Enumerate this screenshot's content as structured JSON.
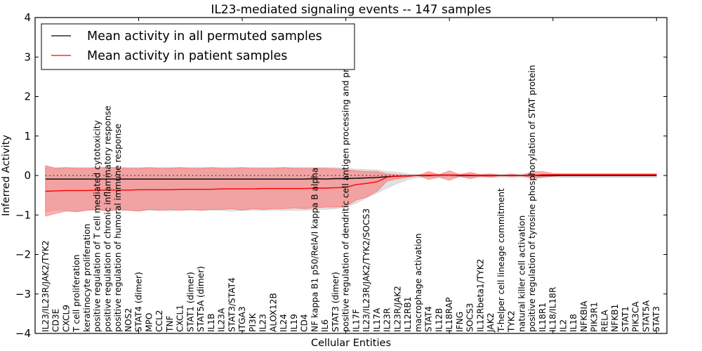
{
  "chart_data": {
    "type": "line",
    "title": "IL23-mediated signaling events -- 147 samples",
    "xlabel": "Cellular Entities",
    "ylabel": "Inferred Activity",
    "ylim": [
      -4,
      4
    ],
    "xlim": [
      0,
      61
    ],
    "yticks": [
      -4,
      -3,
      -2,
      -1,
      0,
      1,
      2,
      3,
      4
    ],
    "ytick_labels": [
      "−4",
      "−3",
      "−2",
      "−1",
      "0",
      "1",
      "2",
      "3",
      "4"
    ],
    "xticks_major": [
      10,
      20,
      30,
      40,
      50,
      60
    ],
    "grid": false,
    "legend_position": "top-left",
    "reference_line": {
      "y": 0,
      "style": "dotted"
    },
    "categories": [
      "IL23/IL23R/JAK2/TYK2",
      "CD3E",
      "CXCL9",
      "T cell proliferation",
      "keratinocyte proliferation",
      "positive regulation of T cell mediated cytotoxicity",
      "positive regulation of chronic inflammatory response",
      "positive regulation of humoral immune response",
      "NOS2",
      "STAT4 (dimer)",
      "MPO",
      "CCL2",
      "TNF",
      "CXCL1",
      "STAT1 (dimer)",
      "STAT5A (dimer)",
      "IL1B",
      "IL23A",
      "STAT3/STAT4",
      "ITGA3",
      "PI3K",
      "IL23",
      "ALOX12B",
      "IL24",
      "IL19",
      "CD4",
      "NF kappa B1 p50/RelA/I kappa B alpha",
      "IL6",
      "STAT3 (dimer)",
      "positive regulation of dendritic cell antigen processing and presentation",
      "IL17F",
      "IL23/IL23R/JAK2/TYK2/SOCS3",
      "IL17A",
      "IL23R",
      "IL23R/JAK2",
      "IL12RB1",
      "macrophage activation",
      "STAT4",
      "IL12B",
      "IL18RAP",
      "IFNG",
      "SOCS3",
      "IL12Rbeta1/TYK2",
      "JAK2",
      "T-helper cell lineage commitment",
      "TYK2",
      "natural killer cell activation",
      "positive regulation of tyrosine phosphorylation of STAT protein",
      "IL18R1",
      "IL18/IL18R",
      "IL2",
      "IL18",
      "NFKBIA",
      "PIK3R1",
      "RELA",
      "NFKB1",
      "STAT1",
      "PIK3CA",
      "STAT5A",
      "STAT3"
    ],
    "series": [
      {
        "name": "Mean activity in all permuted samples",
        "color": "#000000",
        "values": [
          -0.09,
          -0.09,
          -0.09,
          -0.09,
          -0.09,
          -0.09,
          -0.09,
          -0.09,
          -0.09,
          -0.09,
          -0.09,
          -0.09,
          -0.09,
          -0.09,
          -0.09,
          -0.09,
          -0.09,
          -0.09,
          -0.09,
          -0.09,
          -0.09,
          -0.09,
          -0.09,
          -0.09,
          -0.09,
          -0.09,
          -0.08,
          -0.09,
          -0.08,
          -0.08,
          -0.07,
          -0.06,
          -0.05,
          -0.03,
          -0.02,
          -0.01,
          0.0,
          0.0,
          0.01,
          0.01,
          0.0,
          0.0,
          0.0,
          0.0,
          0.0,
          0.0,
          0.0,
          0.0,
          0.0,
          0.0,
          0.0,
          0.0,
          0.0,
          0.0,
          0.0,
          0.0,
          0.0,
          0.0,
          0.0,
          0.0
        ],
        "band_lower": [
          -0.92,
          -0.88,
          -0.88,
          -0.9,
          -0.88,
          -0.88,
          -0.88,
          -0.9,
          -0.88,
          -0.9,
          -0.88,
          -0.88,
          -0.9,
          -0.88,
          -0.88,
          -0.88,
          -0.88,
          -0.88,
          -0.9,
          -0.88,
          -0.88,
          -0.88,
          -0.88,
          -0.88,
          -0.88,
          -0.88,
          -0.86,
          -0.86,
          -0.84,
          -0.8,
          -0.7,
          -0.56,
          -0.44,
          -0.32,
          -0.2,
          -0.1,
          -0.05,
          -0.04,
          -0.04,
          -0.04,
          -0.04,
          -0.04,
          -0.04,
          -0.05,
          -0.04,
          -0.05,
          -0.04,
          -0.04,
          -0.04,
          -0.04,
          -0.05,
          -0.05,
          -0.05,
          -0.05,
          -0.05,
          -0.05,
          -0.05,
          -0.05,
          -0.05,
          -0.05
        ],
        "band_upper": [
          0.2,
          0.2,
          0.2,
          0.2,
          0.2,
          0.2,
          0.2,
          0.2,
          0.2,
          0.2,
          0.2,
          0.2,
          0.2,
          0.2,
          0.2,
          0.2,
          0.2,
          0.2,
          0.2,
          0.2,
          0.2,
          0.2,
          0.2,
          0.2,
          0.2,
          0.2,
          0.2,
          0.2,
          0.2,
          0.18,
          0.16,
          0.15,
          0.14,
          0.1,
          0.08,
          0.04,
          0.03,
          0.03,
          0.03,
          0.04,
          0.03,
          0.03,
          0.03,
          0.04,
          0.03,
          0.04,
          0.04,
          0.04,
          0.04,
          0.04,
          0.05,
          0.05,
          0.05,
          0.05,
          0.05,
          0.05,
          0.05,
          0.05,
          0.05,
          0.05
        ]
      },
      {
        "name": "Mean activity in patient samples",
        "color": "#ff0000",
        "values": [
          -0.4,
          -0.39,
          -0.38,
          -0.38,
          -0.38,
          -0.37,
          -0.37,
          -0.37,
          -0.37,
          -0.36,
          -0.36,
          -0.36,
          -0.36,
          -0.35,
          -0.35,
          -0.35,
          -0.35,
          -0.34,
          -0.34,
          -0.34,
          -0.34,
          -0.33,
          -0.33,
          -0.33,
          -0.33,
          -0.33,
          -0.32,
          -0.32,
          -0.31,
          -0.3,
          -0.23,
          -0.2,
          -0.16,
          -0.04,
          -0.02,
          -0.01,
          0.0,
          0.01,
          0.01,
          0.01,
          0.01,
          0.01,
          0.0,
          0.0,
          0.0,
          0.0,
          0.0,
          0.0,
          0.02,
          0.02,
          0.02,
          0.02,
          0.02,
          0.02,
          0.02,
          0.02,
          0.02,
          0.02,
          0.02,
          0.02
        ],
        "band_lower": [
          -1.03,
          -0.96,
          -0.9,
          -0.92,
          -0.88,
          -0.86,
          -0.9,
          -0.86,
          -0.88,
          -0.9,
          -0.86,
          -0.88,
          -0.86,
          -0.88,
          -0.86,
          -0.88,
          -0.86,
          -0.86,
          -0.84,
          -0.88,
          -0.84,
          -0.86,
          -0.84,
          -0.84,
          -0.82,
          -0.84,
          -0.82,
          -0.8,
          -0.8,
          -0.78,
          -0.62,
          -0.55,
          -0.4,
          -0.14,
          -0.08,
          -0.04,
          0.0,
          -0.1,
          -0.04,
          -0.12,
          -0.02,
          -0.08,
          -0.02,
          -0.04,
          0.0,
          -0.02,
          0.0,
          -0.08,
          -0.05,
          -0.02,
          0.0,
          0.0,
          0.0,
          0.0,
          0.0,
          0.0,
          0.0,
          0.0,
          0.0,
          0.0
        ],
        "band_upper": [
          0.25,
          0.18,
          0.2,
          0.18,
          0.18,
          0.2,
          0.2,
          0.2,
          0.18,
          0.18,
          0.2,
          0.18,
          0.18,
          0.2,
          0.18,
          0.18,
          0.2,
          0.18,
          0.18,
          0.2,
          0.18,
          0.18,
          0.18,
          0.2,
          0.18,
          0.18,
          0.18,
          0.18,
          0.17,
          0.15,
          0.12,
          0.1,
          0.1,
          0.04,
          0.02,
          0.01,
          0.0,
          0.1,
          0.02,
          0.12,
          0.02,
          0.08,
          0.02,
          0.04,
          0.0,
          0.03,
          0.0,
          0.1,
          0.1,
          0.05,
          0.04,
          0.04,
          0.04,
          0.04,
          0.04,
          0.04,
          0.04,
          0.04,
          0.04,
          0.04
        ]
      }
    ]
  }
}
